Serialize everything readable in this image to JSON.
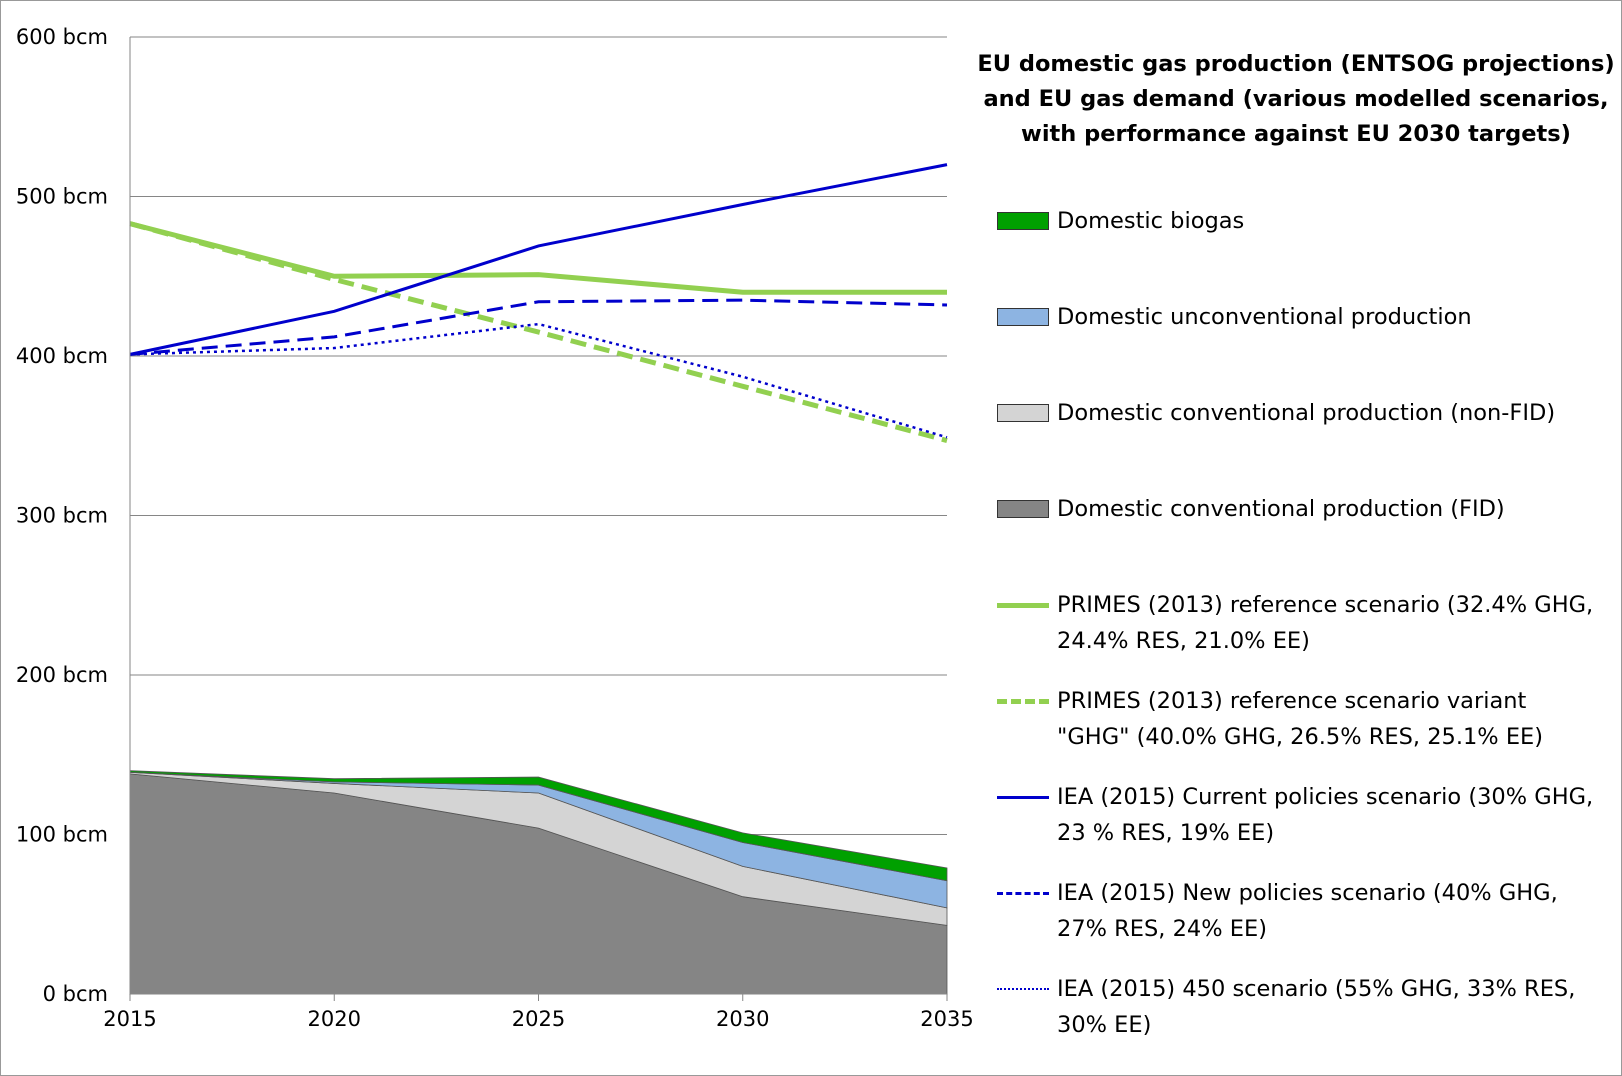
{
  "chart_data": {
    "type": "stacked-area-line",
    "title": "EU domestic gas  production (ENTSOG projections) and EU gas demand (various modelled scenarios, with performance against EU 2030 targets)",
    "x": [
      2015,
      2020,
      2025,
      2030,
      2035
    ],
    "xlim": [
      2015,
      2035
    ],
    "xticks": [
      2015,
      2020,
      2025,
      2030,
      2035
    ],
    "ylim": [
      0,
      600
    ],
    "yticks": [
      {
        "value": 0,
        "label": "0 bcm"
      },
      {
        "value": 100,
        "label": "100 bcm"
      },
      {
        "value": 200,
        "label": "200 bcm"
      },
      {
        "value": 300,
        "label": "300 bcm"
      },
      {
        "value": 400,
        "label": "400 bcm"
      },
      {
        "value": 500,
        "label": "500 bcm"
      },
      {
        "value": 600,
        "label": "600 bcm"
      }
    ],
    "grid": true,
    "legend": "right",
    "series": [
      {
        "name": "Domestic biogas",
        "kind": "area",
        "color": "#00a000",
        "values": [
          1,
          2,
          5,
          6,
          8
        ]
      },
      {
        "name": "Domestic unconventional production",
        "kind": "area",
        "color": "#8db4e2",
        "values": [
          0,
          1,
          5,
          15,
          17
        ]
      },
      {
        "name": "Domestic conventional production (non-FID)",
        "kind": "area",
        "color": "#d4d4d4",
        "values": [
          1,
          6,
          22,
          19,
          11
        ]
      },
      {
        "name": "Domestic conventional production (FID)",
        "kind": "area",
        "color": "#858585",
        "values": [
          138,
          126,
          104,
          61,
          43
        ]
      },
      {
        "name": "PRIMES (2013) reference scenario (32.4% GHG, 24.4% RES, 21.0% EE)",
        "kind": "line",
        "dash": "solid",
        "width": 5,
        "color": "#92d050",
        "values": [
          483,
          450,
          451,
          440,
          440
        ]
      },
      {
        "name": "PRIMES (2013) reference scenario variant \"GHG\" (40.0% GHG, 26.5% RES, 25.1% EE)",
        "kind": "line",
        "dash": "dashed",
        "width": 5,
        "color": "#92d050",
        "values": [
          483,
          448,
          415,
          381,
          347
        ]
      },
      {
        "name": "IEA (2015) Current policies scenario (30% GHG, 23 % RES, 19% EE)",
        "kind": "line",
        "dash": "solid",
        "width": 3,
        "color": "#0000cc",
        "values": [
          401,
          428,
          469,
          495,
          520
        ]
      },
      {
        "name": "IEA (2015) New policies scenario (40% GHG, 27% RES, 24% EE)",
        "kind": "line",
        "dash": "dashed",
        "width": 3,
        "color": "#0000cc",
        "values": [
          401,
          412,
          434,
          435,
          432
        ]
      },
      {
        "name": "IEA (2015) 450 scenario (55% GHG, 33% RES, 30% EE)",
        "kind": "line",
        "dash": "dotted",
        "width": 2.5,
        "color": "#0000cc",
        "values": [
          401,
          405,
          420,
          387,
          349
        ]
      }
    ]
  }
}
